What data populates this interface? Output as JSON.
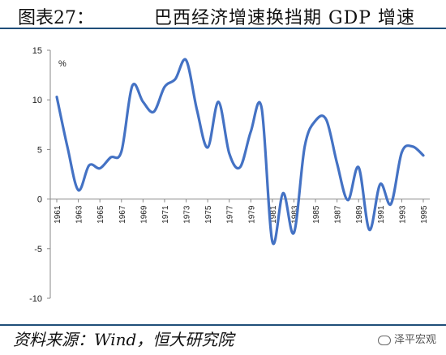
{
  "header": {
    "figure_number": "图表27：",
    "title": "巴西经济增速换挡期 GDP 增速"
  },
  "footer": {
    "source": "资料来源：Wind，恒大研究院",
    "watermark": "泽平宏观"
  },
  "chart_data": {
    "type": "line",
    "title": "巴西经济增速换挡期 GDP 增速",
    "ylabel": "%",
    "xlabel": "",
    "ylim": [
      -10,
      15
    ],
    "xlim": [
      1961,
      1995
    ],
    "yticks": [
      -10,
      -5,
      0,
      5,
      10,
      15
    ],
    "xticks": [
      "1961",
      "1963",
      "1965",
      "1967",
      "1969",
      "1971",
      "1973",
      "1975",
      "1977",
      "1979",
      "1981",
      "1983",
      "1985",
      "1987",
      "1989",
      "1991",
      "1993",
      "1995"
    ],
    "grid": false,
    "legend": "none",
    "series": [
      {
        "color": "#4472c4",
        "x": [
          1961,
          1962,
          1963,
          1964,
          1965,
          1966,
          1967,
          1968,
          1969,
          1970,
          1971,
          1972,
          1973,
          1974,
          1975,
          1976,
          1977,
          1978,
          1979,
          1980,
          1981,
          1982,
          1983,
          1984,
          1985,
          1986,
          1987,
          1988,
          1989,
          1990,
          1991,
          1992,
          1993,
          1994,
          1995
        ],
        "values": [
          10.3,
          5.2,
          0.9,
          3.4,
          3.1,
          4.2,
          4.8,
          11.4,
          9.8,
          8.8,
          11.3,
          12.1,
          14.0,
          9.0,
          5.2,
          9.8,
          4.6,
          3.2,
          6.8,
          9.2,
          -4.3,
          0.6,
          -3.4,
          5.3,
          7.9,
          8.0,
          3.6,
          -0.1,
          3.2,
          -3.1,
          1.5,
          -0.5,
          4.7,
          5.3,
          4.4
        ]
      }
    ]
  }
}
